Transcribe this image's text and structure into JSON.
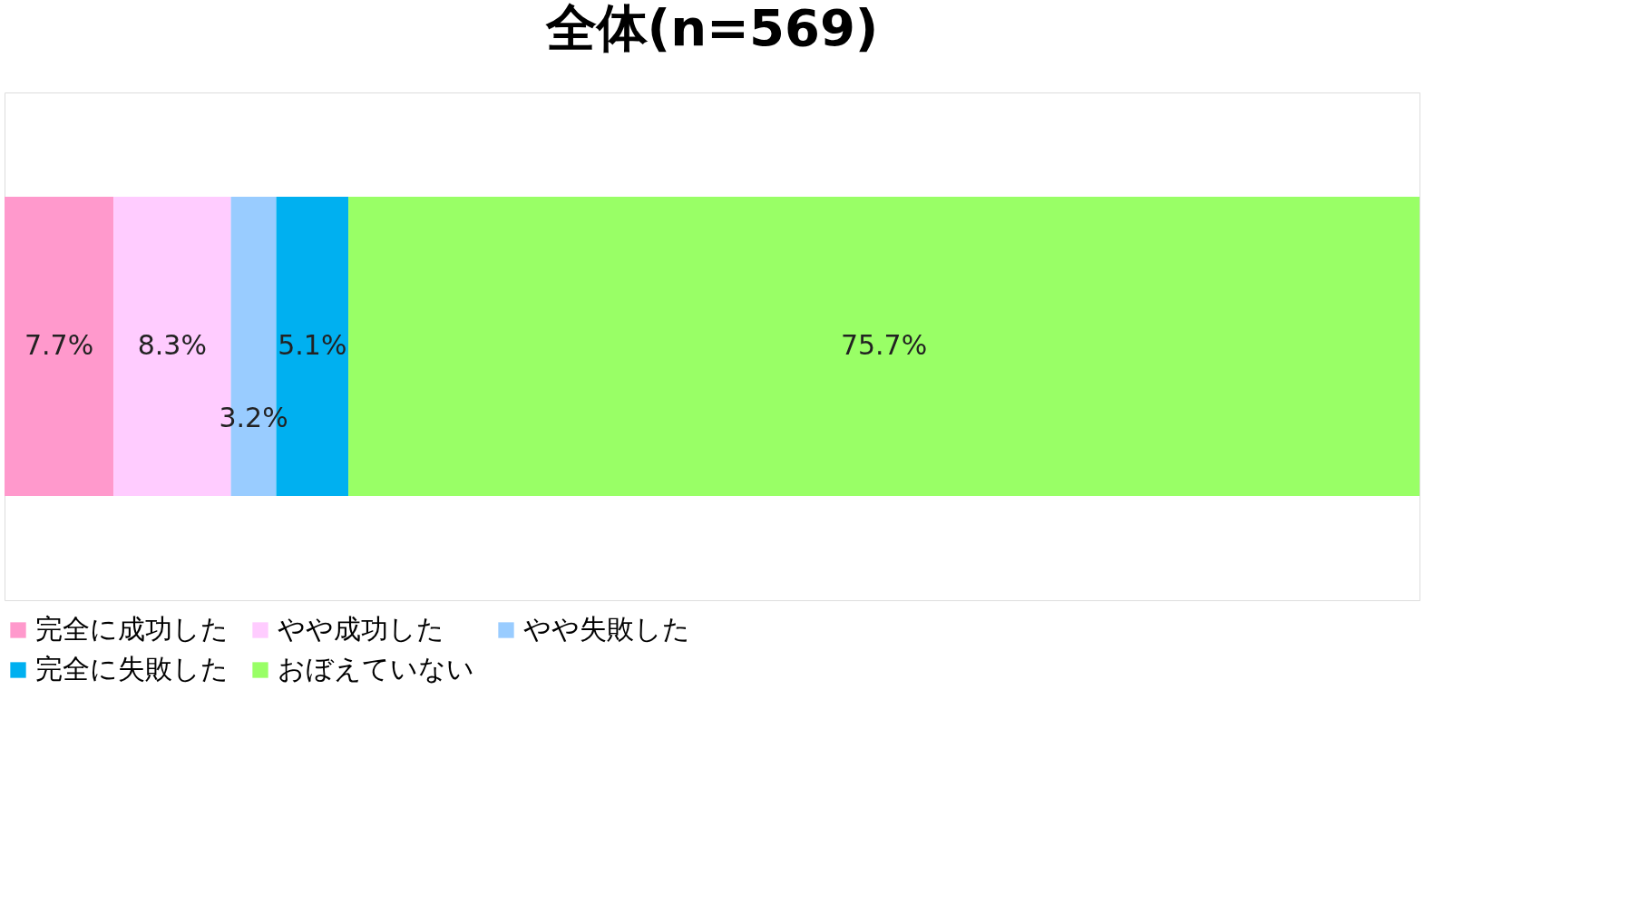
{
  "chart_data": {
    "type": "bar",
    "title": "全体(n=569)",
    "orientation": "horizontal",
    "stacked": true,
    "categories": [
      null
    ],
    "tick_labels": false,
    "grid": false,
    "legend": "bottom",
    "series": [
      {
        "name": "完全に成功した",
        "color": "#ff99cc",
        "values": [
          7.7
        ],
        "value_labels": [
          "7.7%"
        ]
      },
      {
        "name": "やや成功した",
        "color": "#ffccff",
        "values": [
          8.3
        ],
        "value_labels": [
          "8.3%"
        ]
      },
      {
        "name": "やや失敗した",
        "color": "#99ccff",
        "values": [
          3.2
        ],
        "value_labels": [
          "3.2%"
        ]
      },
      {
        "name": "完全に失敗した",
        "color": "#00b0f0",
        "values": [
          5.1
        ],
        "value_labels": [
          "5.1%"
        ]
      },
      {
        "name": "おぼえていない",
        "color": "#99ff66",
        "values": [
          75.7
        ],
        "value_labels": [
          "75.7%"
        ]
      }
    ]
  }
}
